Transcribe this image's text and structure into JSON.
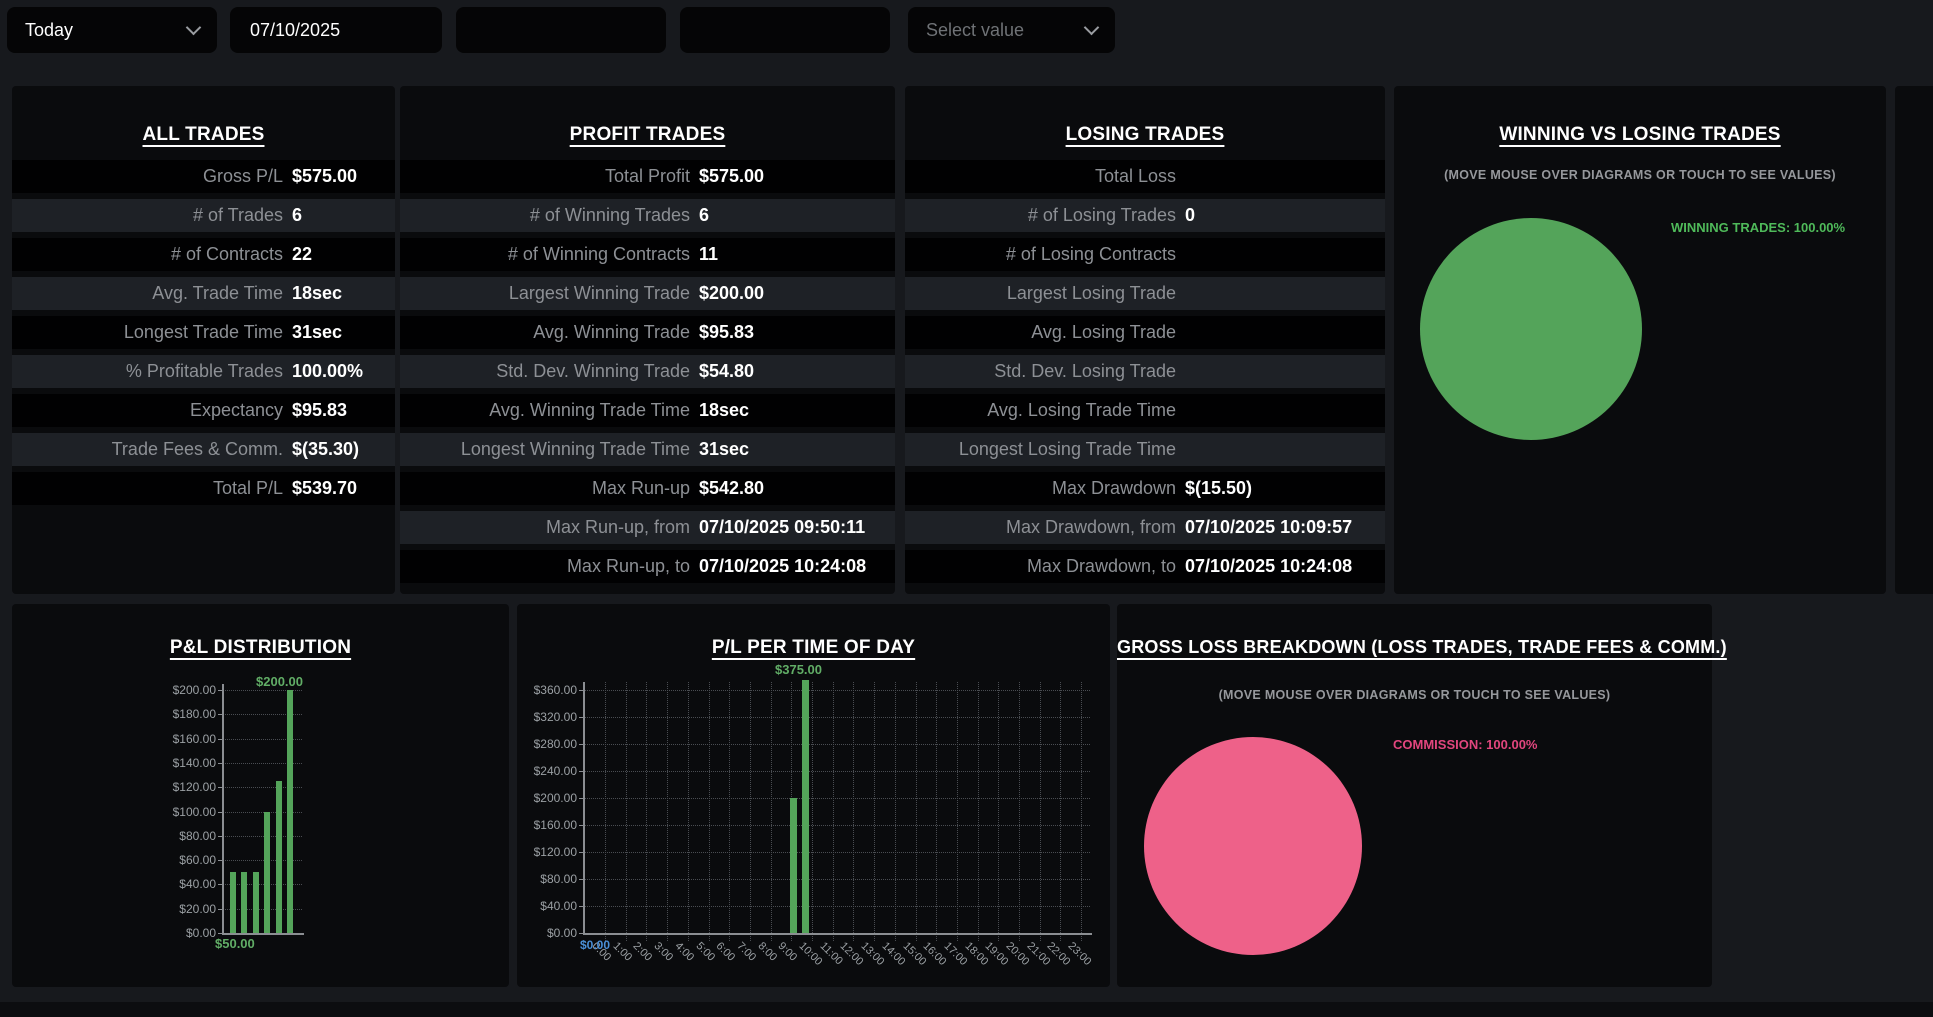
{
  "toolbar": {
    "period_select": {
      "value": "Today"
    },
    "date_input": {
      "value": "07/10/2025"
    },
    "field_1": {
      "value": ""
    },
    "field_2": {
      "value": ""
    },
    "value_select": {
      "placeholder": "Select value"
    }
  },
  "panels": {
    "all_trades": {
      "title": "ALL TRADES",
      "rows": [
        {
          "label": "Gross P/L",
          "value": "$575.00"
        },
        {
          "label": "# of Trades",
          "value": "6"
        },
        {
          "label": "# of Contracts",
          "value": "22"
        },
        {
          "label": "Avg. Trade Time",
          "value": "18sec"
        },
        {
          "label": "Longest Trade Time",
          "value": "31sec"
        },
        {
          "label": "% Profitable Trades",
          "value": "100.00%"
        },
        {
          "label": "Expectancy",
          "value": "$95.83"
        },
        {
          "label": "Trade Fees & Comm.",
          "value": "$(35.30)"
        },
        {
          "label": "Total P/L",
          "value": "$539.70"
        }
      ]
    },
    "profit_trades": {
      "title": "PROFIT TRADES",
      "rows": [
        {
          "label": "Total Profit",
          "value": "$575.00"
        },
        {
          "label": "# of Winning Trades",
          "value": "6"
        },
        {
          "label": "# of Winning Contracts",
          "value": "11"
        },
        {
          "label": "Largest Winning Trade",
          "value": "$200.00"
        },
        {
          "label": "Avg. Winning Trade",
          "value": "$95.83"
        },
        {
          "label": "Std. Dev. Winning Trade",
          "value": "$54.80"
        },
        {
          "label": "Avg. Winning Trade Time",
          "value": "18sec"
        },
        {
          "label": "Longest Winning Trade Time",
          "value": "31sec"
        },
        {
          "label": "Max Run-up",
          "value": "$542.80"
        },
        {
          "label": "Max Run-up, from",
          "value": "07/10/2025 09:50:11"
        },
        {
          "label": "Max Run-up, to",
          "value": "07/10/2025 10:24:08"
        }
      ]
    },
    "losing_trades": {
      "title": "LOSING TRADES",
      "rows": [
        {
          "label": "Total Loss",
          "value": ""
        },
        {
          "label": "# of Losing Trades",
          "value": "0"
        },
        {
          "label": "# of Losing Contracts",
          "value": ""
        },
        {
          "label": "Largest Losing Trade",
          "value": ""
        },
        {
          "label": "Avg. Losing Trade",
          "value": ""
        },
        {
          "label": "Std. Dev. Losing Trade",
          "value": ""
        },
        {
          "label": "Avg. Losing Trade Time",
          "value": ""
        },
        {
          "label": "Longest Losing Trade Time",
          "value": ""
        },
        {
          "label": "Max Drawdown",
          "value": "$(15.50)"
        },
        {
          "label": "Max Drawdown, from",
          "value": "07/10/2025 10:09:57"
        },
        {
          "label": "Max Drawdown, to",
          "value": "07/10/2025 10:24:08"
        }
      ]
    }
  },
  "chart_data": [
    {
      "type": "pie",
      "title": "WINNING VS LOSING TRADES",
      "subtitle": "(MOVE MOUSE OVER DIAGRAMS OR TOUCH TO SEE VALUES)",
      "slices": [
        {
          "label": "WINNING TRADES",
          "value_pct": 100.0
        }
      ],
      "annotation": "WINNING TRADES: 100.00%",
      "colors": {
        "slice": "#54a45a",
        "annotation": "#4fba5a"
      },
      "legend_position": "right"
    },
    {
      "type": "bar",
      "title": "P&L DISTRIBUTION",
      "values": [
        50,
        50,
        50,
        100,
        125,
        200
      ],
      "ylim": [
        0,
        200
      ],
      "ytick": 20,
      "max_label": "$200.00",
      "min_label": "$50.00",
      "grid": true,
      "colors": {
        "bar": "#54a45a",
        "value_label": "#61ad66"
      }
    },
    {
      "type": "bar",
      "title": "P/L PER TIME OF DAY",
      "categories": [
        "0:00",
        "1:00",
        "2:00",
        "3:00",
        "4:00",
        "5:00",
        "6:00",
        "7:00",
        "8:00",
        "9:00",
        "10:00",
        "11:00",
        "12:00",
        "13:00",
        "14:00",
        "15:00",
        "16:00",
        "17:00",
        "18:00",
        "19:00",
        "20:00",
        "21:00",
        "22:00",
        "23:00"
      ],
      "series": [
        {
          "name": "P/L",
          "points": [
            {
              "hour": 9,
              "value": 200
            },
            {
              "hour": 10,
              "value": 375
            }
          ]
        }
      ],
      "ylim": [
        0,
        360
      ],
      "ytick": 40,
      "max_label": "$375.00",
      "min_label": "$0.00",
      "grid": true,
      "colors": {
        "bar": "#54a45a",
        "value_label": "#61ad66",
        "min_label": "#4a8fd6"
      }
    },
    {
      "type": "pie",
      "title": "GROSS LOSS BREAKDOWN (LOSS TRADES, TRADE FEES & COMM.)",
      "subtitle": "(MOVE MOUSE OVER DIAGRAMS OR TOUCH TO SEE VALUES)",
      "slices": [
        {
          "label": "COMMISSION",
          "value_pct": 100.0
        }
      ],
      "annotation": "COMMISSION: 100.00%",
      "colors": {
        "slice": "#ee6189",
        "annotation": "#e2467e"
      },
      "legend_position": "right"
    }
  ]
}
